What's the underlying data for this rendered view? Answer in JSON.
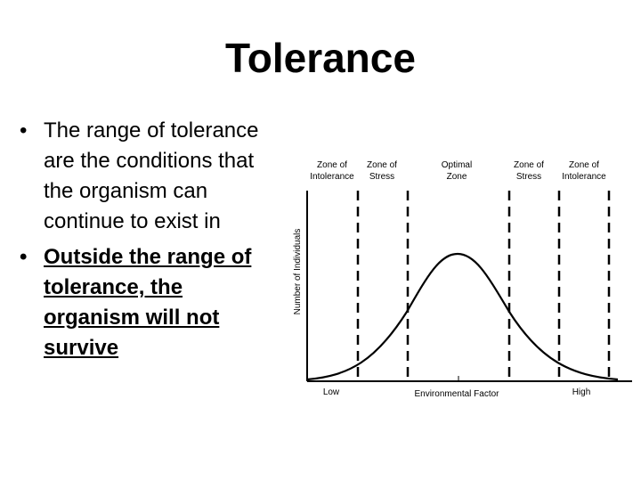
{
  "slide": {
    "title": "Tolerance",
    "bullets": [
      {
        "text": "The range of tolerance are the conditions that the organism can continue to exist in",
        "emphasis": false
      },
      {
        "text": "Outside the range of tolerance, the organism will not survive",
        "emphasis": true
      }
    ],
    "bullet_glyph": "•"
  },
  "diagram": {
    "zones": [
      {
        "line1": "Zone of",
        "line2": "Intolerance"
      },
      {
        "line1": "Zone of",
        "line2": "Stress"
      },
      {
        "line1": "Optimal",
        "line2": "Zone"
      },
      {
        "line1": "Zone of",
        "line2": "Stress"
      },
      {
        "line1": "Zone of",
        "line2": "Intolerance"
      }
    ],
    "y_axis_label": "Number of Individuals",
    "x_axis_label": "Environmental Factor",
    "x_low_label": "Low",
    "x_high_label": "High"
  }
}
